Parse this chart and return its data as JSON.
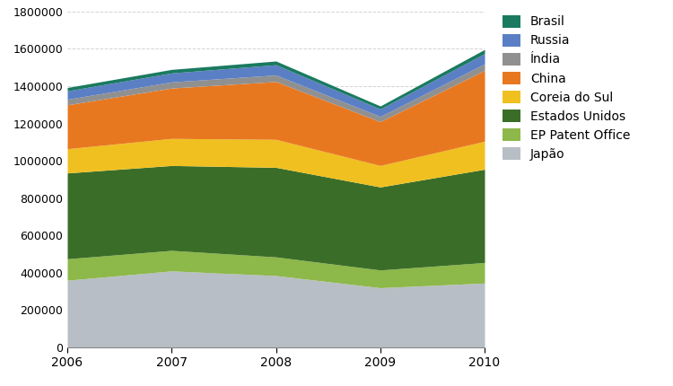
{
  "years": [
    2006,
    2007,
    2008,
    2009,
    2010
  ],
  "series": {
    "Japão": [
      360000,
      410000,
      385000,
      320000,
      345000
    ],
    "EP Patent Office": [
      115000,
      110000,
      100000,
      95000,
      110000
    ],
    "Estados Unidos": [
      460000,
      455000,
      480000,
      445000,
      500000
    ],
    "Coreia do Sul": [
      130000,
      145000,
      150000,
      115000,
      150000
    ],
    "China": [
      235000,
      270000,
      310000,
      235000,
      380000
    ],
    "Índia": [
      30000,
      33000,
      35000,
      28000,
      35000
    ],
    "Russia": [
      45000,
      48000,
      55000,
      40000,
      55000
    ],
    "Brasil": [
      18000,
      19000,
      20000,
      16000,
      22000
    ]
  },
  "colors": {
    "Japão": "#b8bec5",
    "EP Patent Office": "#8db84a",
    "Estados Unidos": "#3a6e28",
    "Coreia do Sul": "#f0c020",
    "China": "#e87820",
    "Índia": "#909090",
    "Russia": "#5b7fc4",
    "Brasil": "#1a7a60"
  },
  "ylim": [
    0,
    1800000
  ],
  "yticks": [
    0,
    200000,
    400000,
    600000,
    800000,
    1000000,
    1200000,
    1400000,
    1600000,
    1800000
  ],
  "background_color": "#ffffff",
  "grid_color": "#c8c8c8",
  "legend_order": [
    "Brasil",
    "Russia",
    "Índia",
    "China",
    "Coreia do Sul",
    "Estados Unidos",
    "EP Patent Office",
    "Japão"
  ],
  "stack_order": [
    "Japão",
    "EP Patent Office",
    "Estados Unidos",
    "Coreia do Sul",
    "China",
    "Índia",
    "Russia",
    "Brasil"
  ]
}
